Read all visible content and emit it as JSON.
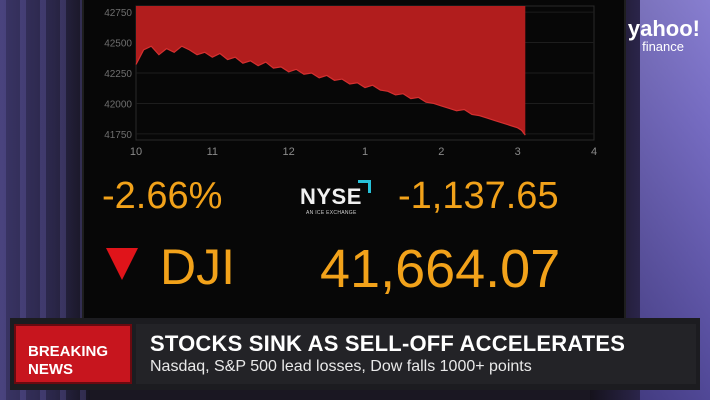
{
  "branding": {
    "line1": "yahoo!",
    "line2": "finance"
  },
  "board": {
    "percent_change": "-2.66%",
    "point_change": "-1,137.65",
    "ticker": "DJI",
    "price": "41,664.07",
    "exchange_logo": {
      "word": "NYSE",
      "tagline": "AN ICE EXCHANGE"
    },
    "direction": "down"
  },
  "chart_data": {
    "type": "area",
    "x_ticks": [
      "10",
      "11",
      "12",
      "1",
      "2",
      "3",
      "4"
    ],
    "y_ticks": [
      "42750",
      "42500",
      "42250",
      "42000",
      "41750"
    ],
    "ylim": [
      41700,
      42800
    ],
    "series_color": "#b11d1d",
    "points": [
      [
        0,
        42320
      ],
      [
        0.05,
        42380
      ],
      [
        0.1,
        42440
      ],
      [
        0.2,
        42470
      ],
      [
        0.3,
        42400
      ],
      [
        0.4,
        42450
      ],
      [
        0.5,
        42420
      ],
      [
        0.6,
        42470
      ],
      [
        0.7,
        42440
      ],
      [
        0.8,
        42400
      ],
      [
        0.9,
        42420
      ],
      [
        1.0,
        42380
      ],
      [
        1.1,
        42410
      ],
      [
        1.2,
        42360
      ],
      [
        1.3,
        42380
      ],
      [
        1.4,
        42330
      ],
      [
        1.5,
        42350
      ],
      [
        1.6,
        42310
      ],
      [
        1.7,
        42340
      ],
      [
        1.8,
        42290
      ],
      [
        1.9,
        42300
      ],
      [
        2.0,
        42260
      ],
      [
        2.1,
        42280
      ],
      [
        2.2,
        42240
      ],
      [
        2.3,
        42250
      ],
      [
        2.4,
        42210
      ],
      [
        2.5,
        42230
      ],
      [
        2.6,
        42190
      ],
      [
        2.7,
        42200
      ],
      [
        2.8,
        42160
      ],
      [
        2.9,
        42170
      ],
      [
        3.0,
        42130
      ],
      [
        3.1,
        42150
      ],
      [
        3.2,
        42110
      ],
      [
        3.3,
        42100
      ],
      [
        3.4,
        42070
      ],
      [
        3.5,
        42080
      ],
      [
        3.6,
        42040
      ],
      [
        3.7,
        42050
      ],
      [
        3.8,
        42010
      ],
      [
        3.9,
        42000
      ],
      [
        4.0,
        41980
      ],
      [
        4.1,
        41960
      ],
      [
        4.2,
        41940
      ],
      [
        4.3,
        41950
      ],
      [
        4.4,
        41910
      ],
      [
        4.5,
        41900
      ],
      [
        4.6,
        41880
      ],
      [
        4.7,
        41860
      ],
      [
        4.8,
        41840
      ],
      [
        4.9,
        41820
      ],
      [
        5.0,
        41800
      ],
      [
        5.05,
        41780
      ],
      [
        5.1,
        41740
      ]
    ]
  },
  "lower_third": {
    "badge_line1": "BREAKING",
    "badge_line2": "NEWS",
    "headline": "STOCKS SINK AS SELL-OFF ACCELERATES",
    "subline": "Nasdaq, S&P 500 lead losses, Dow falls 1000+ points"
  }
}
